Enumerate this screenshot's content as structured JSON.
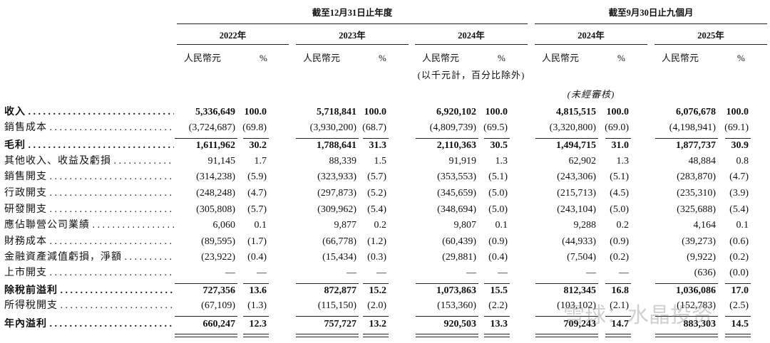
{
  "header": {
    "groups": [
      "截至12月31日止年度",
      "截至9月30日止九個月"
    ],
    "years": [
      "2022年",
      "2023年",
      "2024年",
      "2024年",
      "2025年"
    ],
    "unit_rmb": "人民幣元",
    "unit_pct": "%",
    "note": "(以千元計，百分比除外)",
    "unaudited": "(未經審核)"
  },
  "table": {
    "rows": [
      {
        "label": "收入",
        "bold": true,
        "cells": [
          "5,336,649",
          "100.0",
          "5,718,841",
          "100.0",
          "6,920,102",
          "100.0",
          "4,815,515",
          "100.0",
          "6,076,678",
          "100.0"
        ]
      },
      {
        "label": "銷售成本",
        "bold": false,
        "cells": [
          "(3,724,687)",
          "(69.8)",
          "(3,930,200)",
          "(68.7)",
          "(4,809,739)",
          "(69.5)",
          "(3,320,800)",
          "(69.0)",
          "(4,198,941)",
          "(69.1)"
        ]
      },
      {
        "label": "毛利",
        "bold": true,
        "cells": [
          "1,611,962",
          "30.2",
          "1,788,641",
          "31.3",
          "2,110,363",
          "30.5",
          "1,494,715",
          "31.0",
          "1,877,737",
          "30.9"
        ]
      },
      {
        "label": "其他收入、收益及虧損",
        "bold": false,
        "cells": [
          "91,145",
          "1.7",
          "88,339",
          "1.5",
          "91,919",
          "1.3",
          "62,902",
          "1.3",
          "48,884",
          "0.8"
        ]
      },
      {
        "label": "銷售開支",
        "bold": false,
        "cells": [
          "(314,238)",
          "(5.9)",
          "(323,933)",
          "(5.7)",
          "(353,553)",
          "(5.1)",
          "(243,306)",
          "(5.1)",
          "(283,870)",
          "(4.7)"
        ]
      },
      {
        "label": "行政開支",
        "bold": false,
        "cells": [
          "(248,248)",
          "(4.7)",
          "(297,873)",
          "(5.2)",
          "(345,659)",
          "(5.0)",
          "(215,713)",
          "(4.5)",
          "(235,310)",
          "(3.9)"
        ]
      },
      {
        "label": "研發開支",
        "bold": false,
        "cells": [
          "(305,808)",
          "(5.7)",
          "(309,962)",
          "(5.4)",
          "(348,694)",
          "(5.0)",
          "(243,104)",
          "(5.0)",
          "(325,688)",
          "(5.4)"
        ]
      },
      {
        "label": "應佔聯營公司業績",
        "bold": false,
        "cells": [
          "6,060",
          "0.1",
          "9,877",
          "0.2",
          "9,807",
          "0.1",
          "9,288",
          "0.2",
          "4,164",
          "0.1"
        ]
      },
      {
        "label": "財務成本",
        "bold": false,
        "cells": [
          "(89,595)",
          "(1.7)",
          "(66,778)",
          "(1.2)",
          "(60,439)",
          "(0.9)",
          "(44,933)",
          "(0.9)",
          "(39,273)",
          "(0.6)"
        ]
      },
      {
        "label": "金融資產減值虧損，淨額",
        "bold": false,
        "cells": [
          "(23,922)",
          "(0.4)",
          "(15,434)",
          "(0.3)",
          "(29,881)",
          "(0.4)",
          "(7,504)",
          "(0.2)",
          "(9,922)",
          "(0.2)"
        ]
      },
      {
        "label": "上市開支",
        "bold": false,
        "cells": [
          "—",
          "—",
          "—",
          "—",
          "—",
          "—",
          "—",
          "—",
          "(636)",
          "(0.0)"
        ]
      },
      {
        "label": "除稅前溢利",
        "bold": true,
        "cells": [
          "727,356",
          "13.6",
          "872,877",
          "15.2",
          "1,073,863",
          "15.5",
          "812,345",
          "16.8",
          "1,036,086",
          "17.0"
        ]
      },
      {
        "label": "所得稅開支",
        "bold": false,
        "cells": [
          "(67,109)",
          "(1.3)",
          "(115,150)",
          "(2.0)",
          "(153,360)",
          "(2.2)",
          "(103,102)",
          "(2.1)",
          "(152,783)",
          "(2.5)"
        ]
      },
      {
        "label": "年內溢利",
        "bold": true,
        "cells": [
          "660,247",
          "12.3",
          "757,727",
          "13.2",
          "920,503",
          "13.3",
          "709,243",
          "14.7",
          "883,303",
          "14.5"
        ]
      }
    ]
  },
  "watermark": "雪球：水晶投资"
}
